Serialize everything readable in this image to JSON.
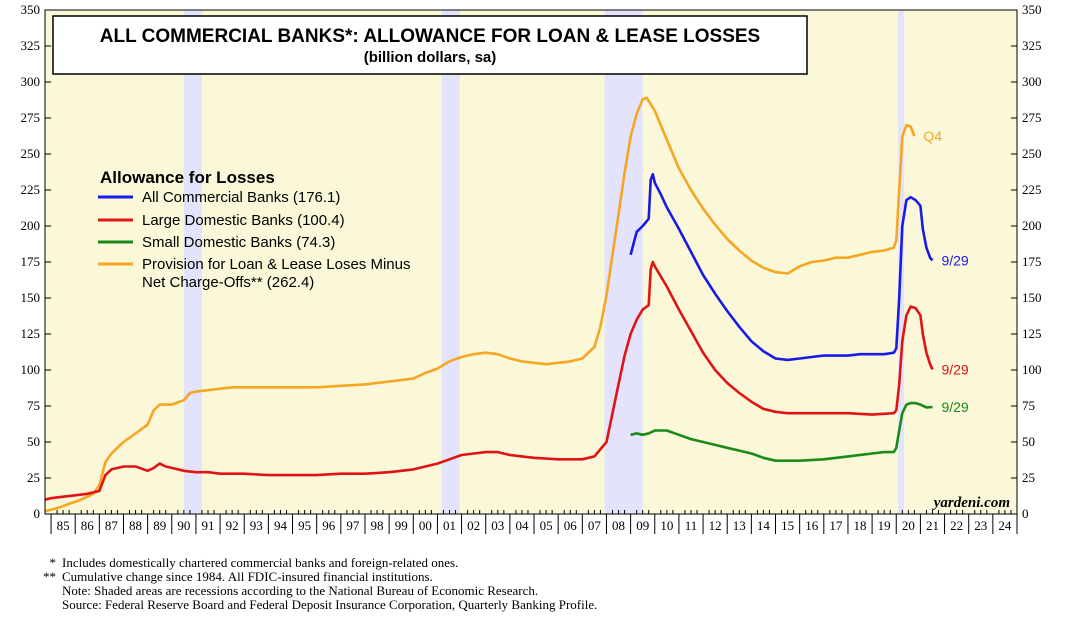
{
  "chart_data": {
    "type": "line",
    "title": "ALL COMMERCIAL BANKS*: ALLOWANCE FOR LOAN & LEASE LOSSES",
    "subtitle": "(billion dollars, sa)",
    "legend_title": "Allowance for Losses",
    "legend_position": "left-middle",
    "grid": false,
    "ylim": [
      0,
      350
    ],
    "xlim": [
      1984.75,
      2025
    ],
    "y_ticks": [
      "0",
      "25",
      "50",
      "75",
      "100",
      "125",
      "150",
      "175",
      "200",
      "225",
      "250",
      "275",
      "300",
      "325",
      "350"
    ],
    "x_tick_labels": [
      "85",
      "86",
      "87",
      "88",
      "89",
      "90",
      "91",
      "92",
      "93",
      "94",
      "95",
      "96",
      "97",
      "98",
      "99",
      "00",
      "01",
      "02",
      "03",
      "04",
      "05",
      "06",
      "07",
      "08",
      "09",
      "10",
      "11",
      "12",
      "13",
      "14",
      "15",
      "16",
      "17",
      "18",
      "19",
      "20",
      "21",
      "22",
      "23",
      "24"
    ],
    "recessions": [
      [
        1990.5,
        1991.25
      ],
      [
        2001.17,
        2001.92
      ],
      [
        2007.92,
        2009.5
      ],
      [
        2020.08,
        2020.33
      ]
    ],
    "series": [
      {
        "name": "All Commercial Banks (176.1)",
        "color": "#1a1ae6",
        "end_label": "9/29",
        "points": [
          [
            2009.0,
            180
          ],
          [
            2009.25,
            196
          ],
          [
            2009.5,
            200
          ],
          [
            2009.75,
            205
          ],
          [
            2009.83,
            232
          ],
          [
            2009.92,
            236
          ],
          [
            2010.0,
            230
          ],
          [
            2010.25,
            222
          ],
          [
            2010.5,
            213
          ],
          [
            2011.0,
            198
          ],
          [
            2011.5,
            182
          ],
          [
            2012.0,
            166
          ],
          [
            2012.5,
            153
          ],
          [
            2013.0,
            141
          ],
          [
            2013.5,
            130
          ],
          [
            2014.0,
            120
          ],
          [
            2014.5,
            113
          ],
          [
            2015.0,
            108
          ],
          [
            2015.5,
            107
          ],
          [
            2016.0,
            108
          ],
          [
            2016.5,
            109
          ],
          [
            2017.0,
            110
          ],
          [
            2017.5,
            110
          ],
          [
            2018.0,
            110
          ],
          [
            2018.5,
            111
          ],
          [
            2019.0,
            111
          ],
          [
            2019.5,
            111
          ],
          [
            2019.9,
            112
          ],
          [
            2020.0,
            115
          ],
          [
            2020.12,
            150
          ],
          [
            2020.25,
            200
          ],
          [
            2020.42,
            218
          ],
          [
            2020.6,
            220
          ],
          [
            2020.8,
            218
          ],
          [
            2021.0,
            214
          ],
          [
            2021.1,
            198
          ],
          [
            2021.25,
            185
          ],
          [
            2021.4,
            178
          ],
          [
            2021.5,
            176.1
          ]
        ]
      },
      {
        "name": "Large Domestic Banks (100.4)",
        "color": "#e01414",
        "end_label": "9/29",
        "points": [
          [
            1984.75,
            10
          ],
          [
            1985.0,
            11
          ],
          [
            1985.5,
            12
          ],
          [
            1986.0,
            13
          ],
          [
            1986.5,
            14
          ],
          [
            1987.0,
            16
          ],
          [
            1987.25,
            27
          ],
          [
            1987.5,
            31
          ],
          [
            1988.0,
            33
          ],
          [
            1988.5,
            33
          ],
          [
            1989.0,
            30
          ],
          [
            1989.25,
            32
          ],
          [
            1989.5,
            35
          ],
          [
            1989.75,
            33
          ],
          [
            1990.0,
            32
          ],
          [
            1990.5,
            30
          ],
          [
            1991.0,
            29
          ],
          [
            1991.5,
            29
          ],
          [
            1992.0,
            28
          ],
          [
            1992.5,
            28
          ],
          [
            1993.0,
            28
          ],
          [
            1994.0,
            27
          ],
          [
            1995.0,
            27
          ],
          [
            1996.0,
            27
          ],
          [
            1997.0,
            28
          ],
          [
            1998.0,
            28
          ],
          [
            1999.0,
            29
          ],
          [
            2000.0,
            31
          ],
          [
            2001.0,
            35
          ],
          [
            2001.5,
            38
          ],
          [
            2002.0,
            41
          ],
          [
            2002.5,
            42
          ],
          [
            2003.0,
            43
          ],
          [
            2003.5,
            43
          ],
          [
            2004.0,
            41
          ],
          [
            2004.5,
            40
          ],
          [
            2005.0,
            39
          ],
          [
            2006.0,
            38
          ],
          [
            2007.0,
            38
          ],
          [
            2007.5,
            40
          ],
          [
            2008.0,
            50
          ],
          [
            2008.25,
            70
          ],
          [
            2008.5,
            90
          ],
          [
            2008.75,
            110
          ],
          [
            2009.0,
            125
          ],
          [
            2009.25,
            135
          ],
          [
            2009.5,
            142
          ],
          [
            2009.75,
            145
          ],
          [
            2009.83,
            170
          ],
          [
            2009.92,
            175
          ],
          [
            2010.0,
            172
          ],
          [
            2010.25,
            165
          ],
          [
            2010.5,
            158
          ],
          [
            2011.0,
            142
          ],
          [
            2011.5,
            127
          ],
          [
            2012.0,
            112
          ],
          [
            2012.5,
            100
          ],
          [
            2013.0,
            91
          ],
          [
            2013.5,
            84
          ],
          [
            2014.0,
            78
          ],
          [
            2014.5,
            73
          ],
          [
            2015.0,
            71
          ],
          [
            2015.5,
            70
          ],
          [
            2016.0,
            70
          ],
          [
            2017.0,
            70
          ],
          [
            2018.0,
            70
          ],
          [
            2019.0,
            69
          ],
          [
            2019.9,
            70
          ],
          [
            2020.0,
            72
          ],
          [
            2020.12,
            90
          ],
          [
            2020.25,
            120
          ],
          [
            2020.42,
            138
          ],
          [
            2020.6,
            144
          ],
          [
            2020.8,
            143
          ],
          [
            2021.0,
            138
          ],
          [
            2021.1,
            125
          ],
          [
            2021.25,
            112
          ],
          [
            2021.4,
            104
          ],
          [
            2021.5,
            100.4
          ]
        ]
      },
      {
        "name": "Small Domestic Banks (74.3)",
        "color": "#1a8a1a",
        "end_label": "9/29",
        "points": [
          [
            2009.0,
            55
          ],
          [
            2009.25,
            56
          ],
          [
            2009.5,
            55
          ],
          [
            2009.75,
            56
          ],
          [
            2010.0,
            58
          ],
          [
            2010.5,
            58
          ],
          [
            2011.0,
            55
          ],
          [
            2011.5,
            52
          ],
          [
            2012.0,
            50
          ],
          [
            2012.5,
            48
          ],
          [
            2013.0,
            46
          ],
          [
            2013.5,
            44
          ],
          [
            2014.0,
            42
          ],
          [
            2014.5,
            39
          ],
          [
            2015.0,
            37
          ],
          [
            2016.0,
            37
          ],
          [
            2017.0,
            38
          ],
          [
            2018.0,
            40
          ],
          [
            2019.0,
            42
          ],
          [
            2019.5,
            43
          ],
          [
            2019.9,
            43
          ],
          [
            2020.0,
            46
          ],
          [
            2020.12,
            58
          ],
          [
            2020.25,
            70
          ],
          [
            2020.42,
            76
          ],
          [
            2020.6,
            77
          ],
          [
            2020.8,
            77
          ],
          [
            2021.0,
            76
          ],
          [
            2021.25,
            74
          ],
          [
            2021.5,
            74.3
          ]
        ]
      },
      {
        "name": "Provision for Loan & Lease Loses Minus\nNet Charge-Offs** (262.4)",
        "color": "#f5a623",
        "end_label": "Q4",
        "points": [
          [
            1984.75,
            2
          ],
          [
            1985.25,
            4
          ],
          [
            1985.75,
            7
          ],
          [
            1986.25,
            10
          ],
          [
            1986.75,
            14
          ],
          [
            1987.0,
            20
          ],
          [
            1987.25,
            36
          ],
          [
            1987.5,
            42
          ],
          [
            1988.0,
            50
          ],
          [
            1988.5,
            56
          ],
          [
            1989.0,
            62
          ],
          [
            1989.25,
            72
          ],
          [
            1989.5,
            76
          ],
          [
            1990.0,
            76
          ],
          [
            1990.5,
            79
          ],
          [
            1990.75,
            84
          ],
          [
            1991.0,
            85
          ],
          [
            1991.5,
            86
          ],
          [
            1992.0,
            87
          ],
          [
            1992.5,
            88
          ],
          [
            1993.0,
            88
          ],
          [
            1994.0,
            88
          ],
          [
            1995.0,
            88
          ],
          [
            1996.0,
            88
          ],
          [
            1997.0,
            89
          ],
          [
            1998.0,
            90
          ],
          [
            1999.0,
            92
          ],
          [
            2000.0,
            94
          ],
          [
            2000.5,
            98
          ],
          [
            2001.0,
            101
          ],
          [
            2001.5,
            106
          ],
          [
            2002.0,
            109
          ],
          [
            2002.5,
            111
          ],
          [
            2003.0,
            112
          ],
          [
            2003.5,
            111
          ],
          [
            2004.0,
            108
          ],
          [
            2004.5,
            106
          ],
          [
            2005.0,
            105
          ],
          [
            2005.5,
            104
          ],
          [
            2006.0,
            105
          ],
          [
            2006.5,
            106
          ],
          [
            2007.0,
            108
          ],
          [
            2007.5,
            116
          ],
          [
            2007.75,
            130
          ],
          [
            2008.0,
            152
          ],
          [
            2008.25,
            180
          ],
          [
            2008.5,
            208
          ],
          [
            2008.75,
            237
          ],
          [
            2009.0,
            262
          ],
          [
            2009.25,
            278
          ],
          [
            2009.5,
            288
          ],
          [
            2009.67,
            289
          ],
          [
            2010.0,
            280
          ],
          [
            2010.5,
            260
          ],
          [
            2011.0,
            240
          ],
          [
            2011.5,
            225
          ],
          [
            2012.0,
            212
          ],
          [
            2012.5,
            201
          ],
          [
            2013.0,
            191
          ],
          [
            2013.5,
            183
          ],
          [
            2014.0,
            176
          ],
          [
            2014.5,
            171
          ],
          [
            2015.0,
            168
          ],
          [
            2015.5,
            167
          ],
          [
            2016.0,
            172
          ],
          [
            2016.5,
            175
          ],
          [
            2017.0,
            176
          ],
          [
            2017.5,
            178
          ],
          [
            2018.0,
            178
          ],
          [
            2018.5,
            180
          ],
          [
            2019.0,
            182
          ],
          [
            2019.5,
            183
          ],
          [
            2019.9,
            185
          ],
          [
            2020.0,
            190
          ],
          [
            2020.12,
            225
          ],
          [
            2020.25,
            262
          ],
          [
            2020.42,
            270
          ],
          [
            2020.6,
            269
          ],
          [
            2020.75,
            262.4
          ]
        ]
      }
    ],
    "watermark": "yardeni.com"
  },
  "footnotes": [
    {
      "mark": "*",
      "text": "Includes domestically chartered commercial banks and foreign-related ones."
    },
    {
      "mark": "**",
      "text": "Cumulative change since 1984. All FDIC-insured financial institutions."
    },
    {
      "mark": "",
      "text": "Note: Shaded areas are recessions according to the National Bureau of Economic Research."
    },
    {
      "mark": "",
      "text": "Source: Federal Reserve Board and Federal Deposit Insurance Corporation, Quarterly Banking Profile."
    }
  ]
}
